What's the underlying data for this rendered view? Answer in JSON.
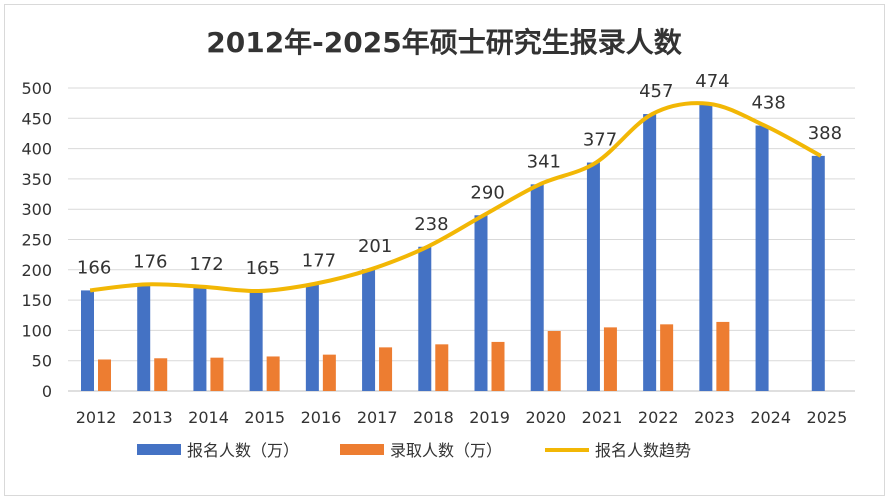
{
  "chart_data": {
    "type": "bar",
    "title": "2012年-2025年硕士研究生报录人数",
    "categories": [
      "2012",
      "2013",
      "2014",
      "2015",
      "2016",
      "2017",
      "2018",
      "2019",
      "2020",
      "2021",
      "2022",
      "2023",
      "2024",
      "2025"
    ],
    "series": [
      {
        "name": "报名人数（万）",
        "type": "bar",
        "color": "#4472C4",
        "values": [
          166,
          176,
          172,
          165,
          177,
          201,
          238,
          290,
          341,
          377,
          457,
          474,
          438,
          388
        ]
      },
      {
        "name": "录取人数（万）",
        "type": "bar",
        "color": "#ED7D31",
        "values": [
          52,
          54,
          55,
          57,
          60,
          72,
          77,
          81,
          99,
          105,
          110,
          114,
          null,
          null
        ]
      },
      {
        "name": "报名人数趋势",
        "type": "line",
        "color": "#F2B705",
        "values": [
          166,
          176,
          172,
          165,
          177,
          201,
          238,
          290,
          341,
          377,
          457,
          474,
          438,
          388
        ]
      }
    ],
    "data_labels": [
      "166",
      "176",
      "172",
      "165",
      "177",
      "201",
      "238",
      "290",
      "341",
      "377",
      "457",
      "474",
      "438",
      "388"
    ],
    "y_ticks": [
      "0",
      "50",
      "100",
      "150",
      "200",
      "250",
      "300",
      "350",
      "400",
      "450",
      "500"
    ],
    "ylim": [
      0,
      500
    ],
    "grid": true,
    "legend_position": "bottom"
  }
}
